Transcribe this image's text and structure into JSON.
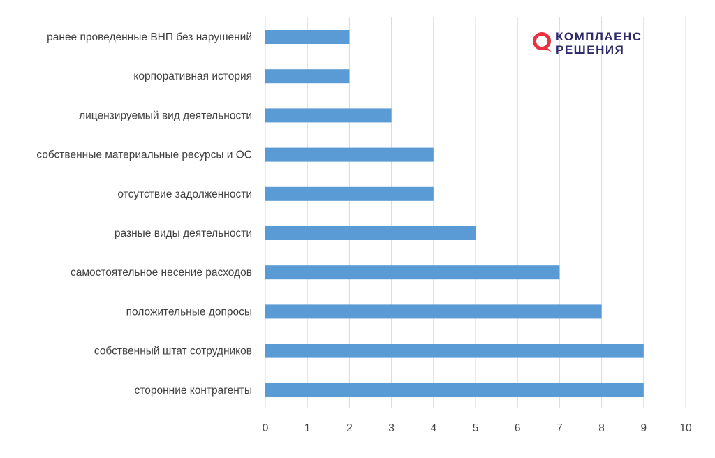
{
  "logo": {
    "line1": "КОМПЛАЕНС",
    "line2": "РЕШЕНИЯ",
    "mark_color": "#e8323f",
    "text_color": "#2e2a6e"
  },
  "chart_data": {
    "type": "bar",
    "orientation": "horizontal",
    "categories": [
      "ранее проведенные ВНП без нарушений",
      "корпоративная история",
      "лицензируемый вид деятельности",
      "собственные материальные ресурсы и ОС",
      "отсутствие задолженности",
      "разные виды деятельности",
      "самостоятельное несение расходов",
      "положительные допросы",
      "собственный штат сотрудников",
      "сторонние контрагенты"
    ],
    "values": [
      2,
      2,
      3,
      4,
      4,
      5,
      7,
      8,
      9,
      9
    ],
    "xlim": [
      0,
      10
    ],
    "x_ticks": [
      "0",
      "1",
      "2",
      "3",
      "4",
      "5",
      "6",
      "7",
      "8",
      "9",
      "10"
    ],
    "grid": "vertical",
    "bar_color": "#5b9bd5",
    "grid_color": "#d9d9d9",
    "title": "",
    "xlabel": "",
    "ylabel": ""
  }
}
